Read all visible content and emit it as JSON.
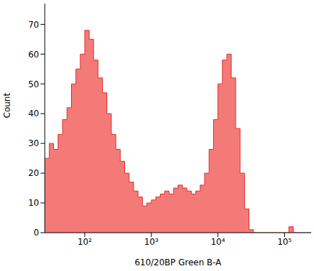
{
  "chart_data": {
    "type": "histogram",
    "x_label": "610/20BP Green B-A",
    "y_label": "Count",
    "log": "x",
    "color": "#f47a78",
    "bins": [
      25.1,
      29.3,
      34.1,
      39.8,
      46.4,
      54.1,
      63.1,
      73.6,
      85.8,
      100,
      116.6,
      135.9,
      158.5,
      184.8,
      215.4,
      251.2,
      292.9,
      341.5,
      398.1,
      464.2,
      541.2,
      631,
      735.6,
      857.7,
      1000,
      1166,
      1359,
      1585,
      1848,
      2154,
      2512,
      2929,
      3415,
      3981,
      4642,
      5412,
      6310,
      7356,
      8577,
      10000,
      11660,
      13590,
      15850,
      18480,
      21540,
      25120,
      29290,
      34150,
      39810,
      46420,
      54120,
      63100,
      73560,
      85770,
      100000,
      116600,
      135900,
      158500,
      184800,
      215400,
      251200
    ],
    "values": [
      25,
      30,
      28,
      33,
      38,
      42,
      50,
      55,
      60,
      68,
      65,
      58,
      52,
      47,
      40,
      33,
      28,
      24,
      20,
      17,
      14,
      12,
      9,
      10,
      11,
      12,
      13,
      14,
      13,
      15,
      16,
      15,
      14,
      13,
      14,
      16,
      20,
      28,
      38,
      50,
      58,
      60,
      52,
      35,
      20,
      8,
      1,
      0,
      0,
      0,
      0,
      0,
      0,
      0,
      0,
      2,
      0,
      0,
      0,
      0
    ],
    "xlim": [
      25.1,
      251200
    ],
    "xticks": [
      {
        "value": 100,
        "label": "10²"
      },
      {
        "value": 1000,
        "label": "10³"
      },
      {
        "value": 10000,
        "label": "10⁴"
      },
      {
        "value": 100000,
        "label": "10⁵"
      }
    ],
    "ylim": [
      0,
      77
    ],
    "yticks": [
      0,
      10,
      20,
      30,
      40,
      50,
      60,
      70
    ]
  }
}
